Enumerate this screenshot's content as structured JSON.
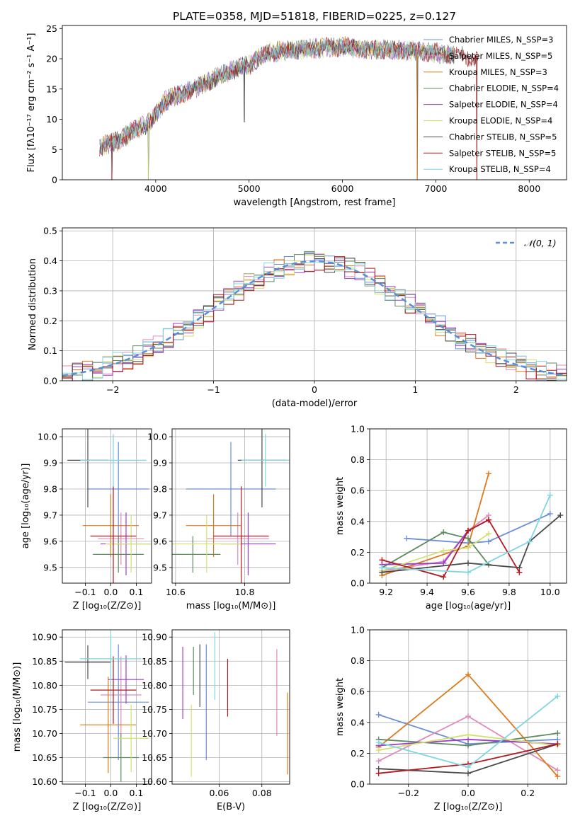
{
  "figure_title": "PLATE=0358, MJD=51818, FIBERID=0225, z=0.127",
  "colors": {
    "chabrier_miles": "#6a8fd8",
    "salpeter_miles": "#e28ab8",
    "kroupa_miles": "#dc7a1c",
    "chabrier_elodie": "#5e8a60",
    "salpeter_elodie": "#9a3ec9",
    "kroupa_elodie": "#d3e070",
    "chabrier_stelib": "#4a4a4a",
    "salpeter_stelib": "#b3191f",
    "kroupa_stelib": "#7fd6e0",
    "normal": "#5a8fd8"
  },
  "chart_data": [
    {
      "id": "spectrum",
      "type": "line",
      "title": "PLATE=0358, MJD=51818, FIBERID=0225, z=0.127",
      "xlabel": "wavelength [Angstrom, rest frame]",
      "ylabel": "Flux [fλ10⁻¹⁷ erg cm⁻² s⁻¹ A⁻¹]",
      "xlim": [
        3000,
        8400
      ],
      "ylim": [
        0,
        25.5
      ],
      "xticks": [
        4000,
        5000,
        6000,
        7000,
        8000
      ],
      "yticks": [
        0,
        5,
        10,
        15,
        20,
        25
      ],
      "grid": false,
      "legend": "right",
      "series": [
        {
          "name": "Chabrier MILES, N_SSP=3",
          "color": "#6a8fd8"
        },
        {
          "name": "Salpeter MILES, N_SSP=5",
          "color": "#e28ab8"
        },
        {
          "name": "Kroupa MILES, N_SSP=3",
          "color": "#dc7a1c"
        },
        {
          "name": "Chabrier ELODIE, N_SSP=4",
          "color": "#5e8a60"
        },
        {
          "name": "Salpeter ELODIE, N_SSP=4",
          "color": "#9a3ec9"
        },
        {
          "name": "Kroupa ELODIE, N_SSP=4",
          "color": "#d3e070"
        },
        {
          "name": "Chabrier STELIB, N_SSP=5",
          "color": "#4a4a4a"
        },
        {
          "name": "Salpeter STELIB, N_SSP=5",
          "color": "#b3191f"
        },
        {
          "name": "Kroupa STELIB, N_SSP=4",
          "color": "#7fd6e0"
        }
      ],
      "continuum": [
        [
          3400,
          5.5
        ],
        [
          3600,
          6.5
        ],
        [
          3800,
          8.5
        ],
        [
          3950,
          9.5
        ],
        [
          4100,
          13
        ],
        [
          4400,
          15
        ],
        [
          4800,
          18
        ],
        [
          5000,
          19
        ],
        [
          5200,
          21
        ],
        [
          5500,
          21.5
        ],
        [
          6000,
          22
        ],
        [
          6300,
          21.5
        ],
        [
          6600,
          21.5
        ],
        [
          7000,
          21
        ],
        [
          7200,
          20.5
        ],
        [
          7450,
          20
        ]
      ],
      "dropouts": [
        [
          3530,
          0
        ],
        [
          3920,
          0
        ],
        [
          4950,
          9.5
        ],
        [
          6800,
          0
        ],
        [
          7440,
          0
        ]
      ]
    },
    {
      "id": "residuals",
      "type": "step",
      "xlabel": "(data-model)/error",
      "ylabel": "Normed distribution",
      "xlim": [
        -2.5,
        2.5
      ],
      "ylim": [
        0,
        0.51
      ],
      "xticks": [
        -2,
        -1,
        0,
        1,
        2
      ],
      "yticks": [
        0.0,
        0.1,
        0.2,
        0.3,
        0.4,
        0.5
      ],
      "grid": true,
      "legend": "top-right",
      "reference": {
        "name": "𝒩(0, 1)",
        "mu": 0,
        "sigma": 1
      },
      "bin_width": 0.1
    },
    {
      "id": "age-vs-Z",
      "type": "errorbar",
      "xlabel": "Z [log₁₀(Z/Z⊙)]",
      "ylabel": "age  [log₁₀(age/yr)]",
      "xlim": [
        -0.19,
        0.16
      ],
      "ylim": [
        9.44,
        10.03
      ],
      "xticks": [
        -0.1,
        0.0,
        0.1
      ],
      "yticks": [
        9.5,
        9.6,
        9.7,
        9.8,
        9.9,
        10.0
      ],
      "grid": true,
      "points": [
        {
          "color": "#6a8fd8",
          "x": 0.03,
          "xerr": 0.12,
          "y": 9.8,
          "yerr": 0.18
        },
        {
          "color": "#e28ab8",
          "x": 0.04,
          "xerr": 0.09,
          "y": 9.61,
          "yerr": 0.1
        },
        {
          "color": "#dc7a1c",
          "x": 0.0,
          "xerr": 0.11,
          "y": 9.66,
          "yerr": 0.12
        },
        {
          "color": "#5e8a60",
          "x": 0.03,
          "xerr": 0.1,
          "y": 9.55,
          "yerr": 0.07
        },
        {
          "color": "#9a3ec9",
          "x": 0.06,
          "xerr": 0.1,
          "y": 9.59,
          "yerr": 0.12
        },
        {
          "color": "#d3e070",
          "x": 0.08,
          "xerr": 0.1,
          "y": 9.59,
          "yerr": 0.11
        },
        {
          "color": "#4a4a4a",
          "x": -0.09,
          "xerr": 0.08,
          "y": 9.91,
          "yerr": 0.18
        },
        {
          "color": "#b3191f",
          "x": 0.01,
          "xerr": 0.09,
          "y": 9.62,
          "yerr": 0.19
        },
        {
          "color": "#7fd6e0",
          "x": 0.01,
          "xerr": 0.13,
          "y": 9.91,
          "yerr": 0.1
        }
      ]
    },
    {
      "id": "age-vs-mass",
      "type": "errorbar",
      "xlabel": "mass [log₁₀(M/M⊙)]",
      "ylabel": "",
      "xlim": [
        10.59,
        10.93
      ],
      "ylim": [
        9.44,
        10.03
      ],
      "xticks": [
        10.6,
        10.8
      ],
      "yticks": [
        9.5,
        9.6,
        9.7,
        9.8,
        9.9,
        10.0
      ],
      "grid": true,
      "points": [
        {
          "color": "#6a8fd8",
          "x": 10.76,
          "xerr": 0.13,
          "y": 9.8,
          "yerr": 0.18
        },
        {
          "color": "#e28ab8",
          "x": 10.78,
          "xerr": 0.09,
          "y": 9.61,
          "yerr": 0.1
        },
        {
          "color": "#dc7a1c",
          "x": 10.71,
          "xerr": 0.08,
          "y": 9.66,
          "yerr": 0.12
        },
        {
          "color": "#5e8a60",
          "x": 10.65,
          "xerr": 0.08,
          "y": 9.55,
          "yerr": 0.07
        },
        {
          "color": "#9a3ec9",
          "x": 10.81,
          "xerr": 0.08,
          "y": 9.59,
          "yerr": 0.12
        },
        {
          "color": "#d3e070",
          "x": 10.69,
          "xerr": 0.1,
          "y": 9.59,
          "yerr": 0.11
        },
        {
          "color": "#4a4a4a",
          "x": 10.85,
          "xerr": 0.07,
          "y": 9.91,
          "yerr": 0.18
        },
        {
          "color": "#b3191f",
          "x": 10.79,
          "xerr": 0.08,
          "y": 9.62,
          "yerr": 0.19
        },
        {
          "color": "#7fd6e0",
          "x": 10.86,
          "xerr": 0.07,
          "y": 9.91,
          "yerr": 0.1
        }
      ]
    },
    {
      "id": "weight-vs-age",
      "type": "line",
      "xlabel": "age  [log₁₀(age/yr)]",
      "ylabel": "mass weight",
      "xlim": [
        9.12,
        10.08
      ],
      "ylim": [
        0,
        1
      ],
      "xticks": [
        9.2,
        9.4,
        9.6,
        9.8,
        10.0
      ],
      "yticks": [
        0.0,
        0.2,
        0.4,
        0.6,
        0.8,
        1.0
      ],
      "grid": true,
      "series": [
        {
          "color": "#6a8fd8",
          "x": [
            9.3,
            9.6,
            9.7,
            10.0
          ],
          "y": [
            0.29,
            0.26,
            0.27,
            0.45
          ]
        },
        {
          "color": "#e28ab8",
          "x": [
            9.18,
            9.48,
            9.6,
            9.7
          ],
          "y": [
            0.08,
            0.14,
            0.34,
            0.44
          ]
        },
        {
          "color": "#dc7a1c",
          "x": [
            9.18,
            9.6,
            9.7
          ],
          "y": [
            0.05,
            0.24,
            0.71
          ]
        },
        {
          "color": "#5e8a60",
          "x": [
            9.18,
            9.48,
            9.6,
            9.7
          ],
          "y": [
            0.1,
            0.33,
            0.29,
            0.12
          ]
        },
        {
          "color": "#9a3ec9",
          "x": [
            9.18,
            9.48,
            9.6,
            9.7
          ],
          "y": [
            0.12,
            0.13,
            0.34,
            0.41
          ]
        },
        {
          "color": "#d3e070",
          "x": [
            9.18,
            9.48,
            9.6,
            9.7
          ],
          "y": [
            0.08,
            0.21,
            0.23,
            0.32
          ]
        },
        {
          "color": "#4a4a4a",
          "x": [
            9.18,
            9.6,
            9.85,
            9.9,
            10.05
          ],
          "y": [
            0.07,
            0.13,
            0.1,
            0.27,
            0.44
          ]
        },
        {
          "color": "#b3191f",
          "x": [
            9.18,
            9.48,
            9.6,
            9.7,
            9.85
          ],
          "y": [
            0.15,
            0.04,
            0.34,
            0.41,
            0.07
          ]
        },
        {
          "color": "#7fd6e0",
          "x": [
            9.18,
            9.6,
            9.9,
            10.0
          ],
          "y": [
            0.1,
            0.07,
            0.27,
            0.57
          ]
        }
      ]
    },
    {
      "id": "mass-vs-Z",
      "type": "errorbar",
      "xlabel": "Z [log₁₀(Z/Z⊙)]",
      "ylabel": "mass [log₁₀(M/M⊙)]",
      "xlim": [
        -0.19,
        0.16
      ],
      "ylim": [
        10.595,
        10.915
      ],
      "xticks": [
        -0.1,
        0.0,
        0.1
      ],
      "yticks": [
        10.6,
        10.65,
        10.7,
        10.75,
        10.8,
        10.85,
        10.9
      ],
      "grid": true,
      "points": [
        {
          "color": "#6a8fd8",
          "x": 0.03,
          "xerr": 0.12,
          "y": 10.765,
          "yerr": 0.12
        },
        {
          "color": "#e28ab8",
          "x": 0.04,
          "xerr": 0.08,
          "y": 10.78,
          "yerr": 0.08
        },
        {
          "color": "#dc7a1c",
          "x": -0.01,
          "xerr": 0.11,
          "y": 10.718,
          "yerr": 0.1
        },
        {
          "color": "#5e8a60",
          "x": 0.04,
          "xerr": 0.07,
          "y": 10.65,
          "yerr": 0.05
        },
        {
          "color": "#9a3ec9",
          "x": 0.06,
          "xerr": 0.07,
          "y": 10.812,
          "yerr": 0.05
        },
        {
          "color": "#d3e070",
          "x": 0.08,
          "xerr": 0.07,
          "y": 10.69,
          "yerr": 0.07
        },
        {
          "color": "#4a4a4a",
          "x": -0.09,
          "xerr": 0.09,
          "y": 10.848,
          "yerr": 0.035
        },
        {
          "color": "#b3191f",
          "x": 0.01,
          "xerr": 0.09,
          "y": 10.79,
          "yerr": 0.07
        },
        {
          "color": "#7fd6e0",
          "x": 0.0,
          "xerr": 0.12,
          "y": 10.855,
          "yerr": 0.055
        }
      ]
    },
    {
      "id": "mass-vs-ebv",
      "type": "errorbar",
      "xlabel": "E(B-V)",
      "ylabel": "",
      "xlim": [
        0.038,
        0.093
      ],
      "ylim": [
        10.595,
        10.915
      ],
      "xticks": [
        0.06,
        0.08
      ],
      "yticks": [
        10.6,
        10.65,
        10.7,
        10.75,
        10.8,
        10.85,
        10.9
      ],
      "grid": true,
      "points": [
        {
          "color": "#6a8fd8",
          "x": 0.054,
          "xerr": 0,
          "y": 10.765,
          "yerr": 0.12
        },
        {
          "color": "#e28ab8",
          "x": 0.087,
          "xerr": 0,
          "y": 10.785,
          "yerr": 0.09
        },
        {
          "color": "#dc7a1c",
          "x": 0.092,
          "xerr": 0,
          "y": 10.7,
          "yerr": 0.085
        },
        {
          "color": "#5e8a60",
          "x": 0.048,
          "xerr": 0,
          "y": 10.83,
          "yerr": 0.05
        },
        {
          "color": "#9a3ec9",
          "x": 0.043,
          "xerr": 0,
          "y": 10.805,
          "yerr": 0.075
        },
        {
          "color": "#d3e070",
          "x": 0.047,
          "xerr": 0,
          "y": 10.685,
          "yerr": 0.075
        },
        {
          "color": "#4a4a4a",
          "x": 0.051,
          "xerr": 0,
          "y": 10.82,
          "yerr": 0.065
        },
        {
          "color": "#b3191f",
          "x": 0.064,
          "xerr": 0,
          "y": 10.795,
          "yerr": 0.06
        },
        {
          "color": "#7fd6e0",
          "x": 0.058,
          "xerr": 0,
          "y": 10.84,
          "yerr": 0.07
        }
      ]
    },
    {
      "id": "weight-vs-Z",
      "type": "line",
      "xlabel": "Z [log₁₀(Z/Z⊙)]",
      "ylabel": "mass weight",
      "xlim": [
        -0.33,
        0.33
      ],
      "ylim": [
        0,
        1
      ],
      "xticks": [
        -0.2,
        0.0,
        0.2
      ],
      "yticks": [
        0.0,
        0.2,
        0.4,
        0.6,
        0.8,
        1.0
      ],
      "grid": true,
      "series": [
        {
          "color": "#6a8fd8",
          "x": [
            -0.3,
            0.0,
            0.3
          ],
          "y": [
            0.45,
            0.26,
            0.29
          ]
        },
        {
          "color": "#e28ab8",
          "x": [
            -0.3,
            0.0,
            0.3
          ],
          "y": [
            0.15,
            0.44,
            0.09
          ]
        },
        {
          "color": "#dc7a1c",
          "x": [
            -0.3,
            0.0,
            0.3
          ],
          "y": [
            0.24,
            0.71,
            0.05
          ]
        },
        {
          "color": "#5e8a60",
          "x": [
            -0.3,
            0.0,
            0.3
          ],
          "y": [
            0.29,
            0.25,
            0.33
          ]
        },
        {
          "color": "#9a3ec9",
          "x": [
            -0.3,
            0.0,
            0.3
          ],
          "y": [
            0.25,
            0.29,
            0.26
          ]
        },
        {
          "color": "#d3e070",
          "x": [
            -0.3,
            0.0,
            0.3
          ],
          "y": [
            0.22,
            0.32,
            0.25
          ]
        },
        {
          "color": "#4a4a4a",
          "x": [
            -0.3,
            0.0,
            0.3
          ],
          "y": [
            0.1,
            0.07,
            0.26
          ]
        },
        {
          "color": "#b3191f",
          "x": [
            -0.3,
            0.0,
            0.3
          ],
          "y": [
            0.07,
            0.13,
            0.26
          ]
        },
        {
          "color": "#7fd6e0",
          "x": [
            -0.3,
            0.0,
            0.3
          ],
          "y": [
            0.27,
            0.11,
            0.57
          ]
        }
      ]
    }
  ]
}
